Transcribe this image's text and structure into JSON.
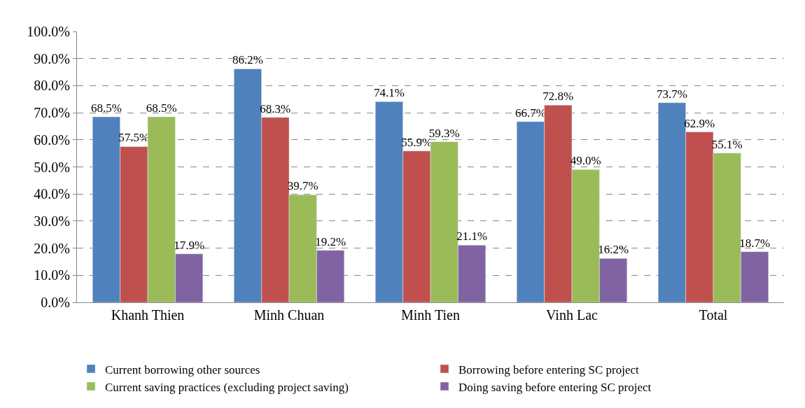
{
  "chart_data": {
    "type": "bar",
    "categories": [
      "Khanh Thien",
      "Minh Chuan",
      "Minh Tien",
      "Vinh Lac",
      "Total"
    ],
    "series": [
      {
        "name": "Current borrowing other sources",
        "color": "#4f81bd",
        "values": [
          68.5,
          86.2,
          74.1,
          66.7,
          73.7
        ],
        "value_labels": [
          "68.5%",
          "86.2%",
          "74.1%",
          "66.7%",
          "73.7%"
        ]
      },
      {
        "name": "Borrowing before entering SC project",
        "color": "#c0504d",
        "values": [
          57.5,
          68.3,
          55.9,
          72.8,
          62.9
        ],
        "value_labels": [
          "57.5%",
          "68.3%",
          "55.9%",
          "72.8%",
          "62.9%"
        ]
      },
      {
        "name": "Current saving practices (excluding project saving)",
        "color": "#9bbb59",
        "values": [
          68.5,
          39.7,
          59.3,
          49.0,
          55.1
        ],
        "value_labels": [
          "68.5%",
          "39.7%",
          "59.3%",
          "49.0%",
          "55.1%"
        ]
      },
      {
        "name": "Doing saving before entering SC project",
        "color": "#8064a2",
        "values": [
          17.9,
          19.2,
          21.1,
          16.2,
          18.7
        ],
        "value_labels": [
          "17.9%",
          "19.2%",
          "21.1%",
          "16.2%",
          "18.7%"
        ]
      }
    ],
    "ylim": [
      0,
      100
    ],
    "yticks": [
      {
        "value": 0,
        "label": "0.0%"
      },
      {
        "value": 10,
        "label": "10.0%"
      },
      {
        "value": 20,
        "label": "20.0%"
      },
      {
        "value": 30,
        "label": "30.0%"
      },
      {
        "value": 40,
        "label": "40.0%"
      },
      {
        "value": 50,
        "label": "50.0%"
      },
      {
        "value": 60,
        "label": "60.0%"
      },
      {
        "value": 70,
        "label": "70.0%"
      },
      {
        "value": 80,
        "label": "80.0%"
      },
      {
        "value": 90,
        "label": "90.0%"
      },
      {
        "value": 100,
        "label": "100.0%"
      }
    ],
    "grid": "y",
    "legend": "bottom"
  }
}
